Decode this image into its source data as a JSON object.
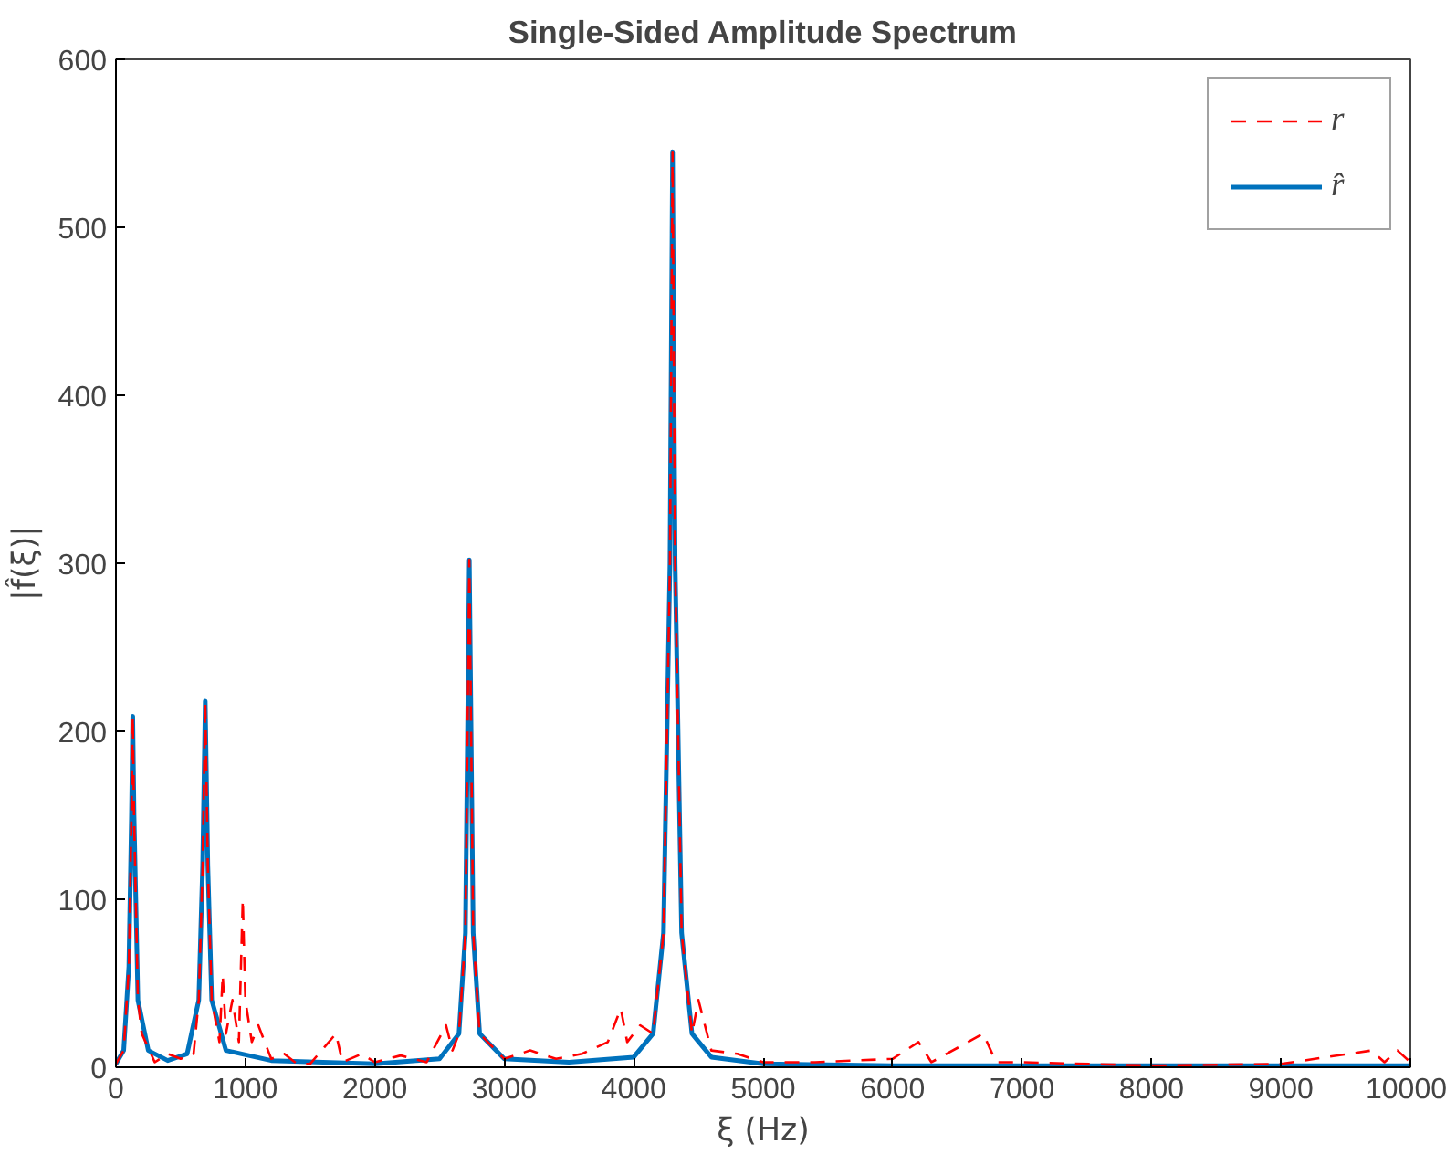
{
  "chart_data": {
    "type": "line",
    "title": "Single-Sided Amplitude Spectrum",
    "xlabel": "ξ (Hz)",
    "ylabel": "|f̂(ξ)|",
    "xlim": [
      0,
      10000
    ],
    "xticks": [
      0,
      1000,
      2000,
      3000,
      4000,
      5000,
      6000,
      7000,
      8000,
      9000,
      10000
    ],
    "ylim": [
      0,
      600
    ],
    "yticks": [
      0,
      100,
      200,
      300,
      400,
      500,
      600
    ],
    "grid": false,
    "legend": "top right",
    "series": [
      {
        "name": "r",
        "color": "#ff0000",
        "line_style": "dashed",
        "x": [
          0,
          60,
          100,
          120,
          130,
          140,
          170,
          200,
          300,
          400,
          500,
          600,
          640,
          670,
          690,
          710,
          740,
          800,
          825,
          850,
          900,
          950,
          980,
          1000,
          1050,
          1100,
          1200,
          1300,
          1400,
          1500,
          1700,
          1750,
          1900,
          2000,
          2200,
          2400,
          2550,
          2600,
          2650,
          2700,
          2730,
          2760,
          2810,
          3000,
          3200,
          3400,
          3600,
          3800,
          3900,
          3950,
          4050,
          4150,
          4230,
          4280,
          4300,
          4320,
          4370,
          4450,
          4500,
          4600,
          4800,
          5000,
          5400,
          6000,
          6200,
          6300,
          6700,
          6800,
          7000,
          8000,
          9000,
          9700,
          9800,
          9900,
          10000
        ],
        "values": [
          2,
          10,
          60,
          150,
          209,
          150,
          40,
          20,
          3,
          8,
          5,
          8,
          40,
          120,
          218,
          120,
          40,
          15,
          55,
          20,
          40,
          15,
          100,
          40,
          15,
          25,
          5,
          8,
          2,
          2,
          20,
          3,
          8,
          3,
          7,
          3,
          25,
          10,
          20,
          80,
          302,
          80,
          20,
          5,
          10,
          5,
          8,
          15,
          35,
          15,
          25,
          20,
          80,
          300,
          545,
          300,
          80,
          20,
          40,
          10,
          8,
          3,
          3,
          5,
          15,
          3,
          20,
          3,
          3,
          1,
          2,
          10,
          3,
          10,
          3
        ]
      },
      {
        "name": "r̂",
        "color": "#0072bd",
        "line_style": "solid",
        "x": [
          0,
          60,
          100,
          120,
          130,
          140,
          170,
          250,
          400,
          550,
          640,
          670,
          690,
          710,
          740,
          850,
          1200,
          2000,
          2500,
          2650,
          2700,
          2730,
          2760,
          2810,
          3000,
          3500,
          4000,
          4150,
          4230,
          4280,
          4300,
          4320,
          4370,
          4450,
          4600,
          5000,
          6000,
          8000,
          10000
        ],
        "values": [
          2,
          10,
          60,
          150,
          209,
          150,
          40,
          10,
          4,
          8,
          40,
          120,
          218,
          120,
          40,
          10,
          4,
          2,
          5,
          20,
          80,
          302,
          80,
          20,
          5,
          3,
          6,
          20,
          80,
          300,
          545,
          300,
          80,
          20,
          6,
          2,
          1,
          1,
          1
        ]
      }
    ]
  }
}
